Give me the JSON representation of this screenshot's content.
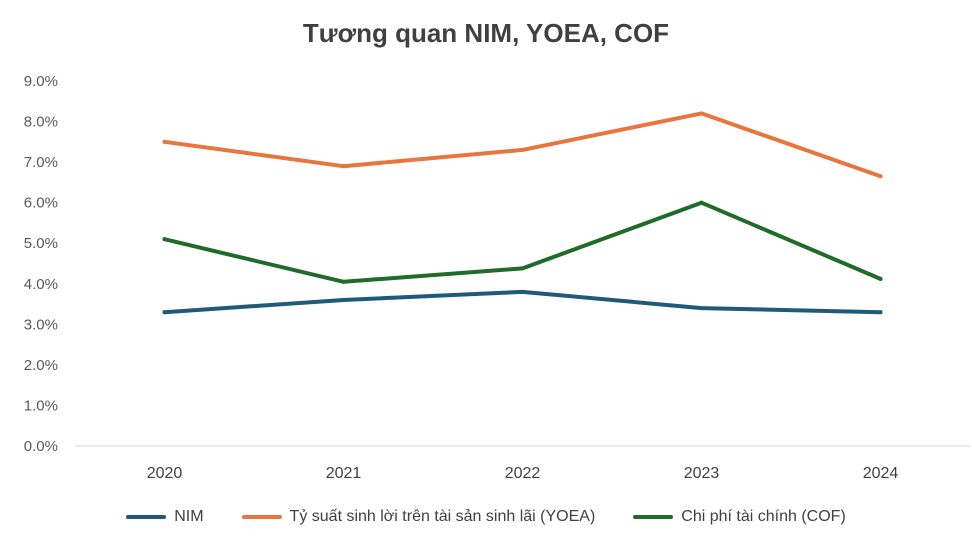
{
  "chart_data": {
    "type": "line",
    "title": "Tương quan NIM, YOEA, COF",
    "categories": [
      "2020",
      "2021",
      "2022",
      "2023",
      "2024"
    ],
    "series": [
      {
        "name": "NIM",
        "color": "#1f5a7a",
        "values": [
          3.3,
          3.6,
          3.8,
          3.4,
          3.3
        ]
      },
      {
        "name": "Tỷ suất sinh lời trên tài sản sinh lãi (YOEA)",
        "color": "#e8763c",
        "values": [
          7.5,
          6.9,
          7.3,
          8.2,
          6.65
        ]
      },
      {
        "name": "Chi phí tài chính (COF)",
        "color": "#1f6b2a",
        "values": [
          5.1,
          4.05,
          4.38,
          6.0,
          4.12
        ]
      }
    ],
    "yticks": [
      "0.0%",
      "1.0%",
      "2.0%",
      "3.0%",
      "4.0%",
      "5.0%",
      "6.0%",
      "7.0%",
      "8.0%",
      "9.0%"
    ],
    "ylim": [
      0,
      9
    ],
    "xlabel": "",
    "ylabel": "",
    "legend_position": "bottom",
    "grid": false
  }
}
